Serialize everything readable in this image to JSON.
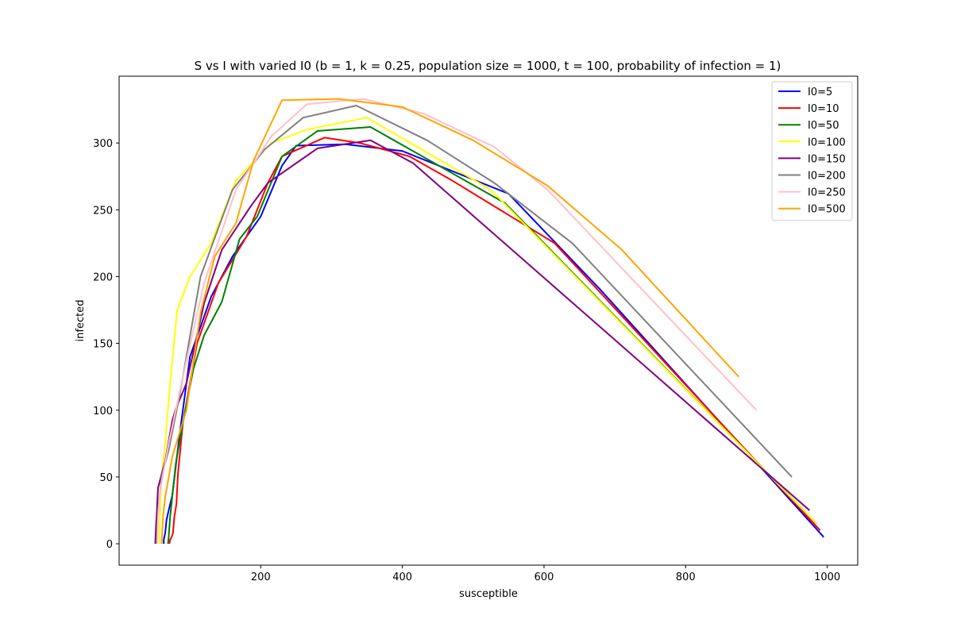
{
  "chart_data": {
    "type": "line",
    "title": "S vs I with varied I0 (b = 1, k = 0.25, population size = 1000, t = 100, probability of infection = 1)",
    "xlabel": "susceptible",
    "ylabel": "infected",
    "xlim": [
      0,
      1043
    ],
    "ylim": [
      -16,
      350
    ],
    "xticks": [
      200,
      400,
      600,
      800,
      1000
    ],
    "yticks": [
      0,
      50,
      100,
      150,
      200,
      250,
      300
    ],
    "grid": false,
    "legend_position": "top-right",
    "series": [
      {
        "name": "I0=5",
        "color": "#0000ff",
        "x": [
          995,
          990,
          680,
          550,
          400,
          320,
          250,
          230,
          200,
          160,
          130,
          100,
          85,
          75,
          70,
          67,
          65,
          63,
          63
        ],
        "y": [
          5,
          8,
          190,
          262,
          294,
          299,
          298,
          283,
          245,
          215,
          185,
          140,
          80,
          36,
          25,
          18,
          8,
          3,
          0
        ]
      },
      {
        "name": "I0=10",
        "color": "#ff0000",
        "x": [
          990,
          615,
          470,
          410,
          340,
          290,
          230,
          210,
          180,
          140,
          110,
          90,
          83,
          81,
          78,
          76,
          74,
          72,
          71
        ],
        "y": [
          10,
          225,
          272,
          290,
          300,
          304,
          290,
          270,
          230,
          195,
          150,
          90,
          52,
          30,
          20,
          8,
          5,
          3,
          0
        ]
      },
      {
        "name": "I0=50",
        "color": "#008000",
        "x": [
          985,
          545,
          355,
          280,
          230,
          195,
          170,
          145,
          120,
          105,
          90,
          85,
          80,
          75,
          72,
          70,
          69
        ],
        "y": [
          15,
          255,
          312,
          309,
          290,
          245,
          228,
          181,
          156,
          131,
          90,
          75,
          60,
          35,
          20,
          5,
          0
        ]
      },
      {
        "name": "I0=100",
        "color": "#ffff00",
        "x": [
          985,
          525,
          350,
          265,
          215,
          165,
          130,
          100,
          82,
          72,
          65,
          60,
          58,
          57
        ],
        "y": [
          15,
          265,
          319,
          310,
          300,
          272,
          225,
          200,
          175,
          120,
          75,
          50,
          30,
          0
        ]
      },
      {
        "name": "I0=150",
        "color": "#800080",
        "x": [
          975,
          415,
          355,
          280,
          210,
          185,
          145,
          120,
          95,
          80,
          75,
          65,
          55,
          53,
          52,
          51
        ],
        "y": [
          25,
          285,
          302,
          296,
          270,
          252,
          220,
          180,
          120,
          101,
          92,
          62,
          42,
          22,
          12,
          0
        ]
      },
      {
        "name": "I0=200",
        "color": "#808080",
        "x": [
          950,
          640,
          530,
          435,
          335,
          260,
          205,
          160,
          115,
          85,
          70,
          60,
          55,
          53
        ],
        "y": [
          50,
          225,
          270,
          302,
          328,
          319,
          295,
          265,
          200,
          110,
          70,
          50,
          25,
          0
        ]
      },
      {
        "name": "I0=250",
        "color": "#ffc0cb",
        "x": [
          900,
          605,
          530,
          430,
          345,
          265,
          215,
          165,
          120,
          90,
          70,
          58,
          55,
          54
        ],
        "y": [
          100,
          265,
          297,
          322,
          333,
          329,
          305,
          265,
          195,
          125,
          75,
          40,
          20,
          0
        ]
      },
      {
        "name": "I0=500",
        "color": "#ffa500",
        "x": [
          875,
          710,
          605,
          500,
          400,
          310,
          230,
          190,
          165,
          135,
          115,
          95,
          75,
          65,
          62,
          60
        ],
        "y": [
          125,
          220,
          268,
          302,
          327,
          333,
          332,
          287,
          240,
          215,
          173,
          100,
          65,
          35,
          20,
          0
        ]
      }
    ]
  }
}
